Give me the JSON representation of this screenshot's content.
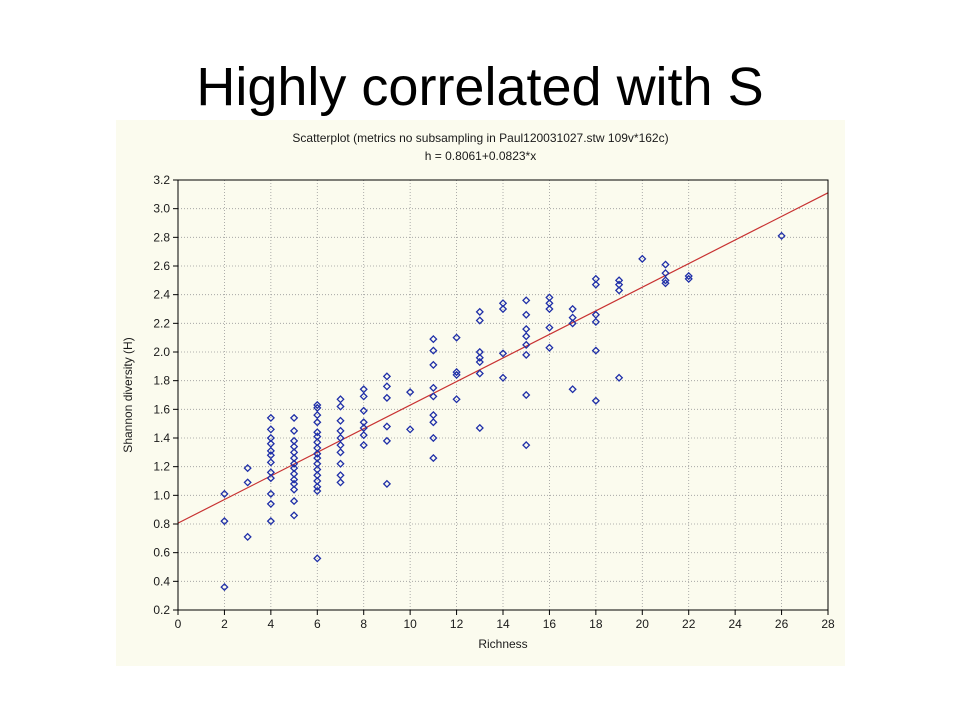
{
  "slide": {
    "title": "Highly correlated with S"
  },
  "colors": {
    "panel_background": "#fbfbee",
    "marker": "#1f2fa8",
    "fit_line": "#c83232",
    "grid": "#9a9a9a"
  },
  "chart_data": {
    "type": "scatter",
    "title": "Scatterplot (metrics no subsampling in Paul120031027.stw 109v*162c)",
    "subtitle": "h = 0.8061+0.0823*x",
    "xlabel": "Richness",
    "ylabel": "Shannon diversity (H)",
    "xlim": [
      0,
      28
    ],
    "ylim": [
      0.2,
      3.2
    ],
    "xticks": [
      0,
      2,
      4,
      6,
      8,
      10,
      12,
      14,
      16,
      18,
      20,
      22,
      24,
      26,
      28
    ],
    "yticks": [
      0.2,
      0.4,
      0.6,
      0.8,
      1.0,
      1.2,
      1.4,
      1.6,
      1.8,
      2.0,
      2.2,
      2.4,
      2.6,
      2.8,
      3.0,
      3.2
    ],
    "grid": true,
    "marker": "diamond-open",
    "fit": {
      "intercept": 0.8061,
      "slope": 0.0823
    },
    "points": [
      [
        2,
        1.01
      ],
      [
        2,
        0.82
      ],
      [
        2,
        0.36
      ],
      [
        3,
        1.19
      ],
      [
        3,
        1.09
      ],
      [
        3,
        0.71
      ],
      [
        4,
        1.54
      ],
      [
        4,
        1.46
      ],
      [
        4,
        1.4
      ],
      [
        4,
        1.36
      ],
      [
        4,
        1.31
      ],
      [
        4,
        1.28
      ],
      [
        4,
        1.23
      ],
      [
        4,
        1.16
      ],
      [
        4,
        1.12
      ],
      [
        4,
        1.01
      ],
      [
        4,
        0.94
      ],
      [
        4,
        0.82
      ],
      [
        5,
        1.54
      ],
      [
        5,
        1.45
      ],
      [
        5,
        1.38
      ],
      [
        5,
        1.34
      ],
      [
        5,
        1.3
      ],
      [
        5,
        1.26
      ],
      [
        5,
        1.22
      ],
      [
        5,
        1.19
      ],
      [
        5,
        1.15
      ],
      [
        5,
        1.11
      ],
      [
        5,
        1.08
      ],
      [
        5,
        1.04
      ],
      [
        5,
        0.96
      ],
      [
        5,
        0.86
      ],
      [
        6,
        1.63
      ],
      [
        6,
        1.61
      ],
      [
        6,
        1.56
      ],
      [
        6,
        1.51
      ],
      [
        6,
        1.44
      ],
      [
        6,
        1.41
      ],
      [
        6,
        1.37
      ],
      [
        6,
        1.33
      ],
      [
        6,
        1.29
      ],
      [
        6,
        1.26
      ],
      [
        6,
        1.22
      ],
      [
        6,
        1.18
      ],
      [
        6,
        1.14
      ],
      [
        6,
        1.1
      ],
      [
        6,
        1.06
      ],
      [
        6,
        1.03
      ],
      [
        6,
        0.56
      ],
      [
        7,
        1.67
      ],
      [
        7,
        1.62
      ],
      [
        7,
        1.52
      ],
      [
        7,
        1.45
      ],
      [
        7,
        1.4
      ],
      [
        7,
        1.35
      ],
      [
        7,
        1.3
      ],
      [
        7,
        1.22
      ],
      [
        7,
        1.14
      ],
      [
        7,
        1.09
      ],
      [
        8,
        1.74
      ],
      [
        8,
        1.69
      ],
      [
        8,
        1.59
      ],
      [
        8,
        1.51
      ],
      [
        8,
        1.47
      ],
      [
        8,
        1.42
      ],
      [
        8,
        1.35
      ],
      [
        9,
        1.83
      ],
      [
        9,
        1.76
      ],
      [
        9,
        1.68
      ],
      [
        9,
        1.48
      ],
      [
        9,
        1.38
      ],
      [
        9,
        1.08
      ],
      [
        10,
        1.72
      ],
      [
        10,
        1.46
      ],
      [
        11,
        2.09
      ],
      [
        11,
        2.01
      ],
      [
        11,
        1.91
      ],
      [
        11,
        1.75
      ],
      [
        11,
        1.69
      ],
      [
        11,
        1.56
      ],
      [
        11,
        1.51
      ],
      [
        11,
        1.4
      ],
      [
        11,
        1.26
      ],
      [
        12,
        2.1
      ],
      [
        12,
        1.86
      ],
      [
        12,
        1.84
      ],
      [
        12,
        1.67
      ],
      [
        13,
        2.28
      ],
      [
        13,
        2.22
      ],
      [
        13,
        2.0
      ],
      [
        13,
        1.96
      ],
      [
        13,
        1.93
      ],
      [
        13,
        1.85
      ],
      [
        13,
        1.47
      ],
      [
        14,
        2.34
      ],
      [
        14,
        2.3
      ],
      [
        14,
        1.99
      ],
      [
        14,
        1.82
      ],
      [
        15,
        2.36
      ],
      [
        15,
        2.26
      ],
      [
        15,
        2.16
      ],
      [
        15,
        2.11
      ],
      [
        15,
        2.05
      ],
      [
        15,
        1.98
      ],
      [
        15,
        1.7
      ],
      [
        15,
        1.35
      ],
      [
        16,
        2.38
      ],
      [
        16,
        2.34
      ],
      [
        16,
        2.3
      ],
      [
        16,
        2.17
      ],
      [
        16,
        2.03
      ],
      [
        17,
        2.3
      ],
      [
        17,
        2.24
      ],
      [
        17,
        2.2
      ],
      [
        17,
        1.74
      ],
      [
        18,
        2.51
      ],
      [
        18,
        2.47
      ],
      [
        18,
        2.26
      ],
      [
        18,
        2.21
      ],
      [
        18,
        2.01
      ],
      [
        18,
        1.66
      ],
      [
        19,
        2.5
      ],
      [
        19,
        2.47
      ],
      [
        19,
        2.43
      ],
      [
        19,
        1.82
      ],
      [
        20,
        2.65
      ],
      [
        21,
        2.61
      ],
      [
        21,
        2.55
      ],
      [
        21,
        2.5
      ],
      [
        21,
        2.48
      ],
      [
        22,
        2.53
      ],
      [
        22,
        2.51
      ],
      [
        26,
        2.81
      ]
    ]
  }
}
